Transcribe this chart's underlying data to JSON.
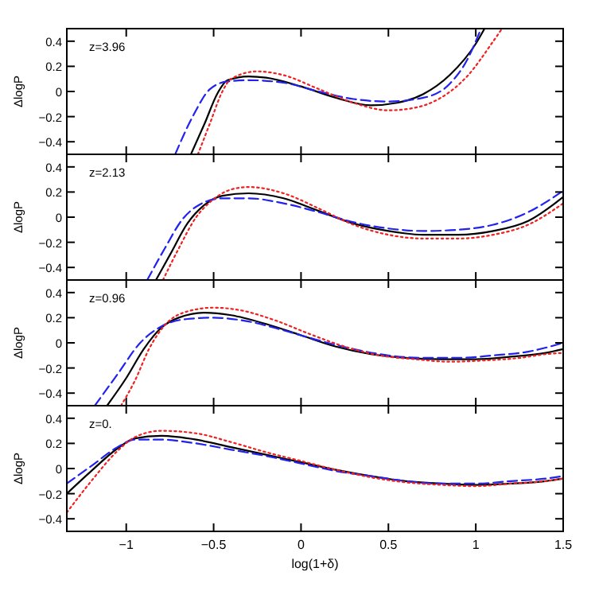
{
  "chart_data": [
    {
      "type": "line",
      "ylabel": "ΔlogP",
      "annotations": [
        "z=3.96"
      ],
      "xlim": [
        -1.34,
        1.5
      ],
      "xticks": [
        -1,
        -0.5,
        0,
        0.5,
        1,
        1.5
      ],
      "ylim": [
        -0.5,
        0.5
      ],
      "yticks": [
        -0.4,
        -0.2,
        0,
        0.2,
        0.4
      ],
      "tick_labels": "y",
      "series": [
        {
          "color": "#000000",
          "line_style": "solid",
          "x": [
            -0.63,
            -0.55,
            -0.48,
            -0.42,
            -0.3,
            -0.2,
            0,
            0.2,
            0.4,
            0.55,
            0.7,
            0.85,
            1.0,
            1.05
          ],
          "values": [
            -0.5,
            -0.25,
            -0.02,
            0.09,
            0.12,
            0.11,
            0.04,
            -0.05,
            -0.11,
            -0.09,
            -0.02,
            0.13,
            0.38,
            0.5
          ]
        },
        {
          "color": "#2222ee",
          "line_style": "dashed",
          "x": [
            -0.72,
            -0.62,
            -0.52,
            -0.42,
            -0.3,
            -0.1,
            0.1,
            0.3,
            0.5,
            0.7,
            0.85,
            0.95,
            1.03
          ],
          "values": [
            -0.5,
            -0.2,
            0.02,
            0.08,
            0.09,
            0.07,
            0.0,
            -0.06,
            -0.08,
            -0.05,
            0.06,
            0.25,
            0.5
          ]
        },
        {
          "color": "#ee2222",
          "line_style": "dotted",
          "x": [
            -0.59,
            -0.52,
            -0.45,
            -0.4,
            -0.25,
            -0.1,
            0.1,
            0.3,
            0.5,
            0.65,
            0.8,
            0.95,
            1.1,
            1.15
          ],
          "values": [
            -0.5,
            -0.25,
            0.0,
            0.1,
            0.16,
            0.13,
            0.02,
            -0.09,
            -0.15,
            -0.13,
            -0.05,
            0.12,
            0.4,
            0.5
          ]
        }
      ]
    },
    {
      "type": "line",
      "ylabel": "ΔlogP",
      "annotations": [
        "z=2.13"
      ],
      "xlim": [
        -1.34,
        1.5
      ],
      "xticks": [
        -1,
        -0.5,
        0,
        0.5,
        1,
        1.5
      ],
      "ylim": [
        -0.5,
        0.5
      ],
      "yticks": [
        -0.4,
        -0.2,
        0,
        0.2,
        0.4
      ],
      "tick_labels": "y",
      "series": [
        {
          "color": "#000000",
          "line_style": "solid",
          "x": [
            -0.83,
            -0.75,
            -0.65,
            -0.55,
            -0.45,
            -0.3,
            -0.1,
            0.1,
            0.3,
            0.5,
            0.7,
            0.9,
            1.1,
            1.3,
            1.5
          ],
          "values": [
            -0.5,
            -0.3,
            -0.05,
            0.1,
            0.17,
            0.19,
            0.15,
            0.05,
            -0.05,
            -0.11,
            -0.14,
            -0.14,
            -0.11,
            -0.03,
            0.16
          ]
        },
        {
          "color": "#2222ee",
          "line_style": "dashed",
          "x": [
            -0.88,
            -0.78,
            -0.68,
            -0.58,
            -0.45,
            -0.3,
            -0.1,
            0.1,
            0.3,
            0.5,
            0.7,
            0.9,
            1.1,
            1.3,
            1.5
          ],
          "values": [
            -0.5,
            -0.25,
            -0.02,
            0.1,
            0.15,
            0.15,
            0.11,
            0.04,
            -0.04,
            -0.09,
            -0.11,
            -0.1,
            -0.06,
            0.04,
            0.21
          ]
        },
        {
          "color": "#ee2222",
          "line_style": "dotted",
          "x": [
            -0.79,
            -0.7,
            -0.6,
            -0.52,
            -0.4,
            -0.3,
            -0.1,
            0.1,
            0.3,
            0.5,
            0.7,
            0.9,
            1.1,
            1.3,
            1.5
          ],
          "values": [
            -0.5,
            -0.25,
            0.0,
            0.12,
            0.22,
            0.24,
            0.19,
            0.07,
            -0.06,
            -0.14,
            -0.17,
            -0.17,
            -0.14,
            -0.06,
            0.11
          ]
        }
      ]
    },
    {
      "type": "line",
      "ylabel": "ΔlogP",
      "annotations": [
        "z=0.96"
      ],
      "xlim": [
        -1.34,
        1.5
      ],
      "xticks": [
        -1,
        -0.5,
        0,
        0.5,
        1,
        1.5
      ],
      "ylim": [
        -0.5,
        0.5
      ],
      "yticks": [
        -0.4,
        -0.2,
        0,
        0.2,
        0.4
      ],
      "tick_labels": "y",
      "series": [
        {
          "color": "#000000",
          "line_style": "solid",
          "x": [
            -1.11,
            -1.0,
            -0.9,
            -0.8,
            -0.7,
            -0.55,
            -0.4,
            -0.2,
            0,
            0.2,
            0.4,
            0.6,
            0.8,
            1.0,
            1.2,
            1.4,
            1.5
          ],
          "values": [
            -0.5,
            -0.28,
            -0.05,
            0.12,
            0.2,
            0.24,
            0.22,
            0.15,
            0.06,
            -0.03,
            -0.09,
            -0.12,
            -0.13,
            -0.13,
            -0.11,
            -0.08,
            -0.05
          ]
        },
        {
          "color": "#2222ee",
          "line_style": "dashed",
          "x": [
            -1.18,
            -1.05,
            -0.92,
            -0.8,
            -0.65,
            -0.5,
            -0.3,
            -0.1,
            0.1,
            0.3,
            0.5,
            0.7,
            0.9,
            1.1,
            1.3,
            1.5
          ],
          "values": [
            -0.5,
            -0.25,
            0.0,
            0.13,
            0.19,
            0.2,
            0.17,
            0.1,
            0.02,
            -0.05,
            -0.1,
            -0.12,
            -0.12,
            -0.1,
            -0.07,
            0.0
          ]
        },
        {
          "color": "#ee2222",
          "line_style": "dotted",
          "x": [
            -1.03,
            -0.95,
            -0.87,
            -0.78,
            -0.65,
            -0.5,
            -0.35,
            -0.15,
            0.05,
            0.25,
            0.45,
            0.65,
            0.85,
            1.05,
            1.25,
            1.4,
            1.5
          ],
          "values": [
            -0.5,
            -0.3,
            -0.05,
            0.14,
            0.25,
            0.28,
            0.26,
            0.18,
            0.07,
            -0.03,
            -0.1,
            -0.13,
            -0.15,
            -0.14,
            -0.12,
            -0.09,
            -0.08
          ]
        }
      ]
    },
    {
      "type": "line",
      "ylabel": "ΔlogP",
      "xlabel": "log(1+δ)",
      "annotations": [
        "z=0."
      ],
      "xlim": [
        -1.34,
        1.5
      ],
      "xticks": [
        -1,
        -0.5,
        0,
        0.5,
        1,
        1.5
      ],
      "ylim": [
        -0.5,
        0.5
      ],
      "yticks": [
        -0.4,
        -0.2,
        0,
        0.2,
        0.4
      ],
      "series": [
        {
          "color": "#000000",
          "line_style": "solid",
          "x": [
            -1.34,
            -1.2,
            -1.05,
            -0.95,
            -0.8,
            -0.6,
            -0.4,
            -0.2,
            0,
            0.2,
            0.4,
            0.6,
            0.8,
            1.0,
            1.2,
            1.4,
            1.5
          ],
          "values": [
            -0.2,
            -0.02,
            0.16,
            0.24,
            0.26,
            0.23,
            0.17,
            0.11,
            0.05,
            -0.01,
            -0.06,
            -0.1,
            -0.12,
            -0.13,
            -0.12,
            -0.1,
            -0.08
          ]
        },
        {
          "color": "#2222ee",
          "line_style": "dashed",
          "x": [
            -1.34,
            -1.2,
            -1.05,
            -0.95,
            -0.8,
            -0.6,
            -0.4,
            -0.2,
            0,
            0.2,
            0.4,
            0.6,
            0.8,
            1.0,
            1.2,
            1.4,
            1.5
          ],
          "values": [
            -0.12,
            0.02,
            0.17,
            0.23,
            0.23,
            0.2,
            0.15,
            0.1,
            0.04,
            -0.02,
            -0.06,
            -0.1,
            -0.12,
            -0.12,
            -0.1,
            -0.08,
            -0.06
          ]
        },
        {
          "color": "#ee2222",
          "line_style": "dotted",
          "x": [
            -1.34,
            -1.2,
            -1.05,
            -0.95,
            -0.8,
            -0.6,
            -0.4,
            -0.2,
            0,
            0.2,
            0.4,
            0.6,
            0.8,
            1.0,
            1.2,
            1.4,
            1.5
          ],
          "values": [
            -0.35,
            -0.1,
            0.14,
            0.25,
            0.3,
            0.28,
            0.21,
            0.13,
            0.06,
            -0.01,
            -0.07,
            -0.11,
            -0.13,
            -0.14,
            -0.12,
            -0.1,
            -0.08
          ]
        }
      ]
    }
  ]
}
